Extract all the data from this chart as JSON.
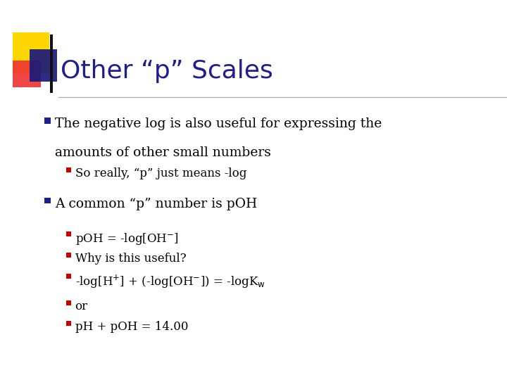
{
  "title": "Other “p” Scales",
  "title_color": "#1E1E8C",
  "background_color": "#FFFFFF",
  "bullet_color": "#1E1E8C",
  "sub_bullet_color": "#CC0000",
  "bullet1_line1": "The negative log is also useful for expressing the",
  "bullet1_line2": "amounts of other small numbers",
  "sub_bullet1": "So really, “p” just means -log",
  "bullet2": "A common “p” number is pOH",
  "sub_bullets2_0": "pOH = -log[OH",
  "sub_bullets2_1": "Why is this useful?",
  "sub_bullets2_2": "-log[H",
  "sub_bullets2_3": "or",
  "sub_bullets2_4": "pH + pOH = 14.00",
  "divider_color": "#AAAAAA",
  "text_color": "#000000",
  "accent_yellow": "#FFD700",
  "accent_red": "#EE3333",
  "accent_blue_dark": "#1A1A7A",
  "accent_blue_med": "#4444BB"
}
